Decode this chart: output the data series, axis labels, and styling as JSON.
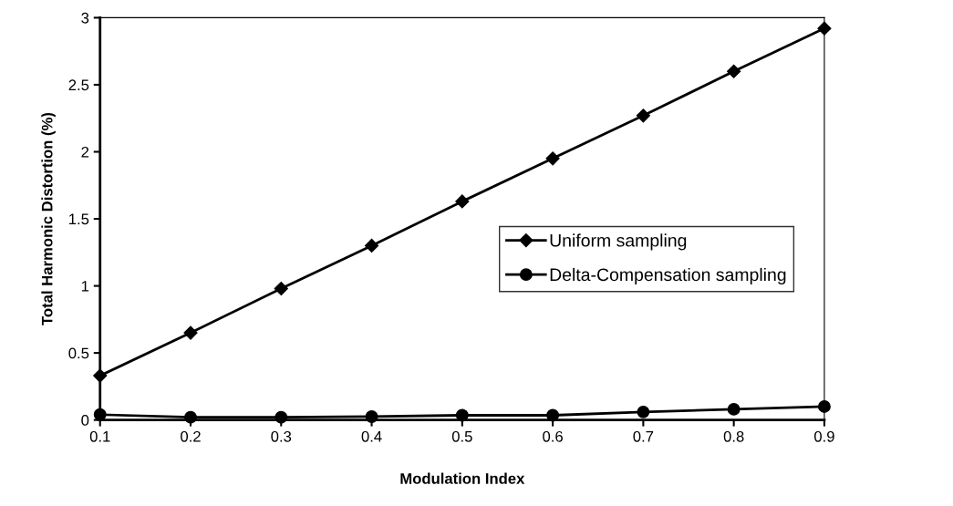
{
  "chart_data": {
    "type": "line",
    "xlabel": "Modulation Index",
    "ylabel": "Total Harmonic Distortion (%)",
    "x": [
      0.1,
      0.2,
      0.3,
      0.4,
      0.5,
      0.6,
      0.7,
      0.8,
      0.9
    ],
    "series": [
      {
        "name": "Uniform sampling",
        "color": "#000000",
        "marker": "diamond",
        "values": [
          0.33,
          0.65,
          0.98,
          1.3,
          1.63,
          1.95,
          2.27,
          2.6,
          2.92
        ]
      },
      {
        "name": "Delta-Compensation sampling",
        "color": "#000000",
        "marker": "circle",
        "values": [
          0.04,
          0.02,
          0.02,
          0.025,
          0.035,
          0.035,
          0.06,
          0.08,
          0.1
        ]
      }
    ],
    "xlim": [
      0.1,
      0.9
    ],
    "xticks": [
      0.1,
      0.2,
      0.3,
      0.4,
      0.5,
      0.6,
      0.7,
      0.8,
      0.9
    ],
    "ylim": [
      0,
      3
    ],
    "yticks": [
      0,
      0.5,
      1,
      1.5,
      2,
      2.5,
      3
    ],
    "grid": false,
    "legend": "right",
    "line_style": "solid"
  }
}
